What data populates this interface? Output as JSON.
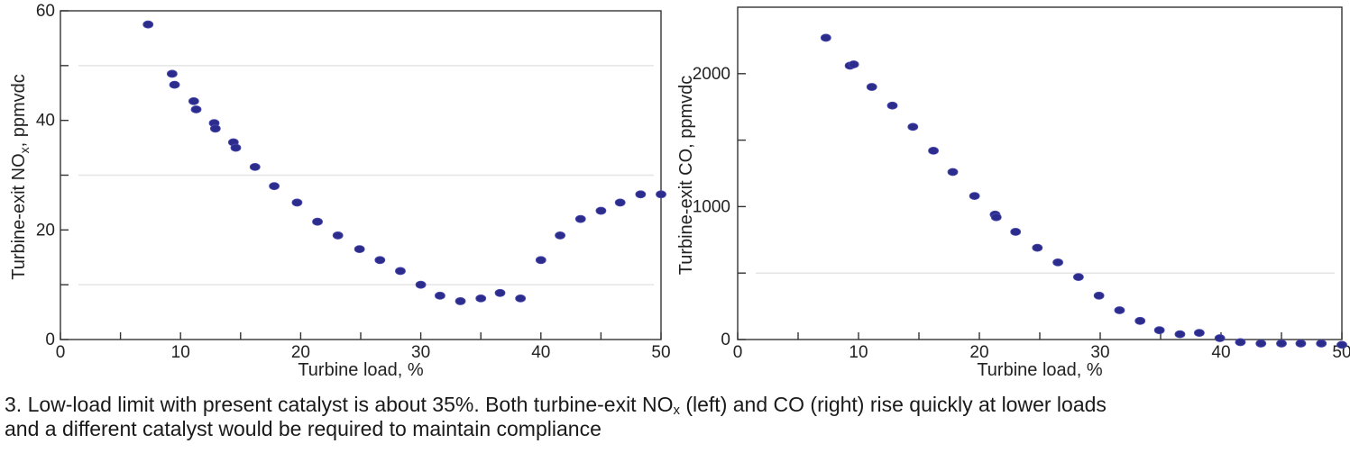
{
  "caption": {
    "number": "3.",
    "text_a": "Low-load limit with present catalyst is about 35%. Both turbine-exit NO",
    "sub_a": "x",
    "text_b": " (left) and CO (right) rise quickly at lower loads",
    "text_c": "and a different catalyst would be required to maintain compliance"
  },
  "chart_data": [
    {
      "type": "scatter",
      "title": "",
      "xlabel": "Turbine load, %",
      "ylabel_main": "Turbine-exit NO",
      "ylabel_sub": "x",
      "ylabel_tail": ", ppmvdc",
      "xlim": [
        0,
        50
      ],
      "ylim": [
        0,
        60
      ],
      "xticks": [
        0,
        10,
        20,
        30,
        40,
        50
      ],
      "xminor": [
        5,
        15,
        25,
        35,
        45
      ],
      "yticks": [
        0,
        20,
        40,
        60
      ],
      "yminor": [
        10,
        30,
        50
      ],
      "ygrid": [
        10,
        30,
        50
      ],
      "grid": "faint horizontal lines",
      "series": [
        {
          "color": "#2b2c8c",
          "x": [
            7.3,
            9.3,
            9.5,
            11.1,
            11.3,
            12.8,
            12.9,
            14.4,
            14.6,
            16.2,
            17.8,
            19.7,
            21.4,
            23.1,
            24.9,
            26.6,
            28.3,
            30.0,
            31.6,
            33.3,
            35.0,
            36.6,
            38.3,
            40.0,
            41.6,
            43.3,
            45.0,
            46.6,
            48.3,
            50.0
          ],
          "y": [
            57.5,
            48.5,
            46.5,
            43.5,
            42.0,
            39.5,
            38.5,
            36.0,
            35.0,
            31.5,
            28.0,
            25.0,
            21.5,
            19.0,
            16.5,
            14.5,
            12.5,
            10.0,
            8.0,
            7.0,
            7.5,
            8.5,
            7.5,
            14.5,
            19.0,
            22.0,
            23.5,
            25.0,
            26.5,
            26.5
          ]
        }
      ]
    },
    {
      "type": "scatter",
      "title": "",
      "xlabel": "Turbine load, %",
      "ylabel": "Turbine-exit CO, ppmvdc",
      "xlim": [
        0,
        50
      ],
      "ylim": [
        0,
        2500
      ],
      "xticks": [
        0,
        10,
        20,
        30,
        40,
        50
      ],
      "xminor": [
        5,
        15,
        25,
        35,
        45
      ],
      "yticks": [
        0,
        1000,
        2000
      ],
      "yminor": [
        500,
        1500
      ],
      "ygrid": [
        500
      ],
      "grid": "faint horizontal line",
      "series": [
        {
          "color": "#2b2c8c",
          "x": [
            7.3,
            9.3,
            9.6,
            11.1,
            12.8,
            14.5,
            16.2,
            17.8,
            19.6,
            21.3,
            21.4,
            23.0,
            24.8,
            26.5,
            28.2,
            29.9,
            31.6,
            33.3,
            34.9,
            36.6,
            38.2,
            39.9,
            41.6,
            43.3,
            45.0,
            46.6,
            48.3,
            50.0
          ],
          "y": [
            2270,
            2060,
            2070,
            1900,
            1760,
            1600,
            1420,
            1260,
            1080,
            940,
            920,
            810,
            690,
            580,
            470,
            330,
            220,
            140,
            70,
            40,
            50,
            10,
            -20,
            -30,
            -30,
            -30,
            -30,
            -40
          ]
        }
      ]
    }
  ]
}
